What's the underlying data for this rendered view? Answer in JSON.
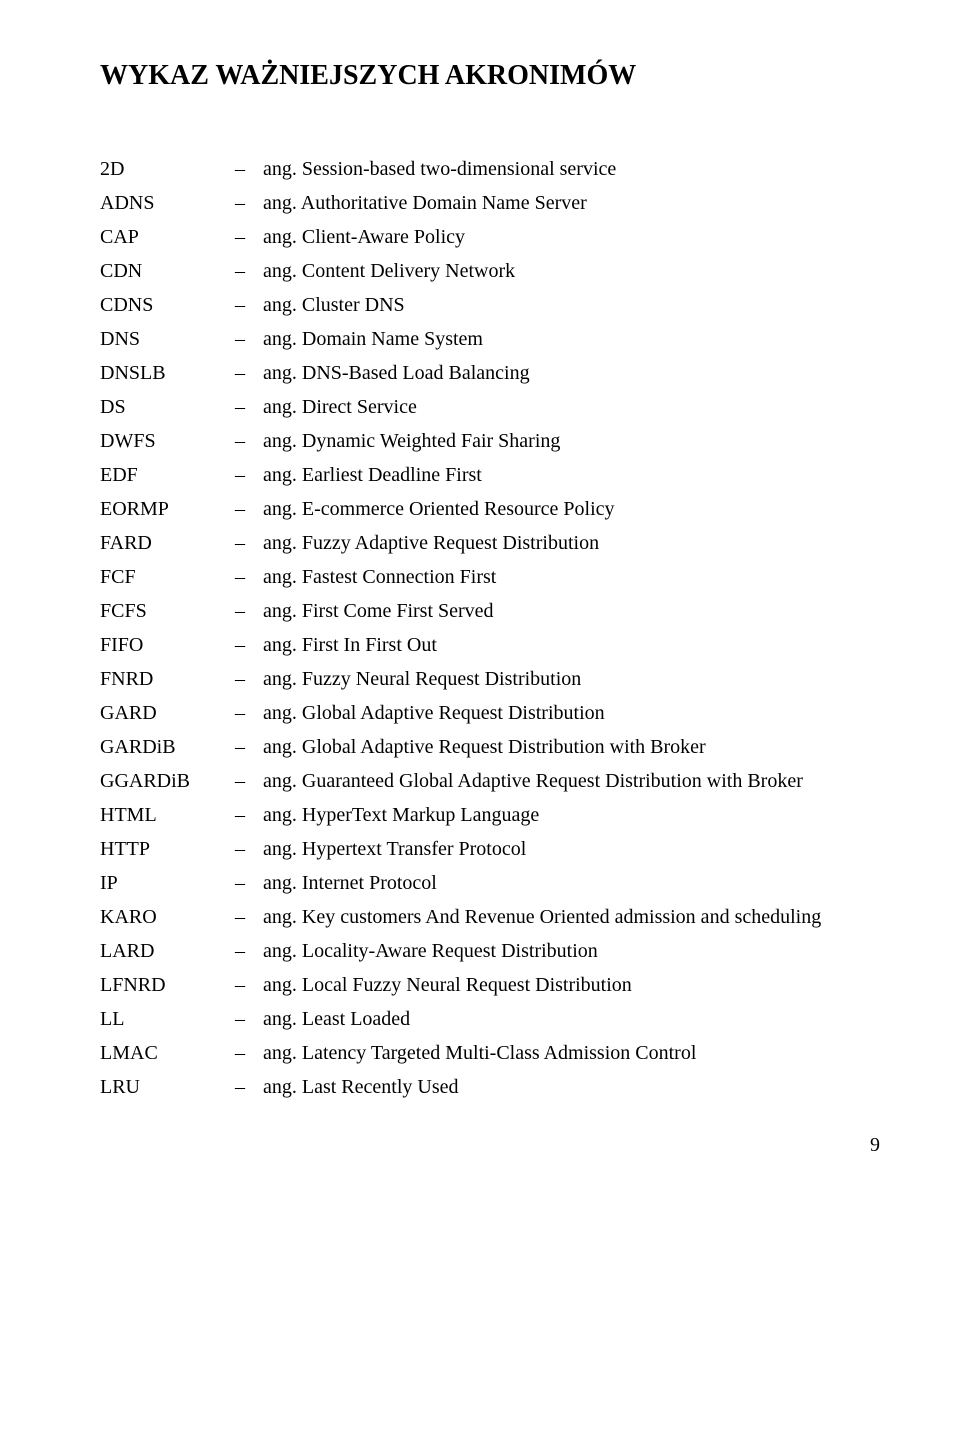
{
  "title": "WYKAZ WAŻNIEJSZYCH AKRONIMÓW",
  "page_number": "9",
  "rows": [
    {
      "key": "2D",
      "def": "ang. Session-based two-dimensional service"
    },
    {
      "key": "ADNS",
      "def": "ang. Authoritative Domain Name Server"
    },
    {
      "key": "CAP",
      "def": "ang. Client-Aware Policy"
    },
    {
      "key": "CDN",
      "def": "ang. Content Delivery Network"
    },
    {
      "key": "CDNS",
      "def": "ang. Cluster DNS"
    },
    {
      "key": "DNS",
      "def": "ang. Domain Name System"
    },
    {
      "key": "DNSLB",
      "def": "ang. DNS-Based Load Balancing"
    },
    {
      "key": "DS",
      "def": "ang. Direct Service"
    },
    {
      "key": "DWFS",
      "def": "ang. Dynamic Weighted Fair Sharing"
    },
    {
      "key": "EDF",
      "def": "ang. Earliest Deadline First"
    },
    {
      "key": "EORMP",
      "def": "ang. E-commerce Oriented Resource Policy"
    },
    {
      "key": "FARD",
      "def": "ang. Fuzzy Adaptive Request Distribution"
    },
    {
      "key": "FCF",
      "def": "ang. Fastest Connection First"
    },
    {
      "key": "FCFS",
      "def": "ang. First Come First Served"
    },
    {
      "key": "FIFO",
      "def": "ang. First In First Out"
    },
    {
      "key": "FNRD",
      "def": "ang. Fuzzy Neural Request Distribution"
    },
    {
      "key": "GARD",
      "def": "ang. Global Adaptive Request Distribution"
    },
    {
      "key": "GARDiB",
      "def": "ang. Global Adaptive Request Distribution with Broker"
    },
    {
      "key": "GGARDiB",
      "def": "ang. Guaranteed Global Adaptive Request Distribution with Broker"
    },
    {
      "key": "HTML",
      "def": "ang. HyperText Markup Language"
    },
    {
      "key": "HTTP",
      "def": "ang. Hypertext Transfer Protocol"
    },
    {
      "key": "IP",
      "def": "ang. Internet Protocol"
    },
    {
      "key": "KARO",
      "def": "ang. Key customers And Revenue Oriented admission and scheduling"
    },
    {
      "key": "LARD",
      "def": "ang. Locality-Aware Request Distribution"
    },
    {
      "key": "LFNRD",
      "def": "ang. Local Fuzzy Neural Request Distribution"
    },
    {
      "key": "LL",
      "def": "ang. Least Loaded"
    },
    {
      "key": "LMAC",
      "def": "ang. Latency Targeted Multi-Class Admission Control"
    },
    {
      "key": "LRU",
      "def": "ang. Last Recently Used"
    }
  ],
  "dash": "–"
}
